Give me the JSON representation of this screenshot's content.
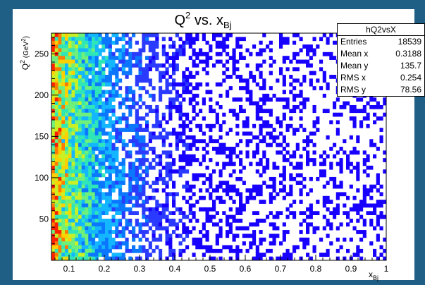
{
  "window": {
    "background": "#1f5f86"
  },
  "stats": {
    "title": "hQ2vsX",
    "rows": [
      {
        "label": "Entries",
        "value": "18539"
      },
      {
        "label": "Mean x",
        "value": "0.3188"
      },
      {
        "label": "Mean y",
        "value": "135.7"
      },
      {
        "label": "RMS x",
        "value": "0.254"
      },
      {
        "label": "RMS y",
        "value": "78.56"
      }
    ]
  },
  "chart_data": {
    "type": "heatmap",
    "title": "Q² vs. x_Bj",
    "title_parts": {
      "main": "Q",
      "sup": "2",
      "mid": " vs. x",
      "sub": "Bj"
    },
    "xlabel_parts": {
      "main": "x",
      "sub": "Bj"
    },
    "ylabel_parts": {
      "main": "Q",
      "sup": "2",
      "unit": " (GeV",
      "unit_sup": "2",
      "close": ")"
    },
    "xlim": [
      0.05,
      1.0
    ],
    "ylim": [
      0,
      275
    ],
    "x_ticks": [
      0.1,
      0.2,
      0.3,
      0.4,
      0.5,
      0.6,
      0.7,
      0.8,
      0.9,
      1
    ],
    "x_tick_labels": [
      "0.1",
      "0.2",
      "0.3",
      "0.4",
      "0.5",
      "0.6",
      "0.7",
      "0.8",
      "0.9",
      "1"
    ],
    "y_ticks": [
      50,
      100,
      150,
      200,
      250
    ],
    "y_tick_labels": [
      "50",
      "100",
      "150",
      "200",
      "250"
    ],
    "bins_x": 100,
    "bins_y": 60,
    "entries": 18539,
    "palette": [
      "#1800ff",
      "#2a3bff",
      "#0b77ff",
      "#14b6ff",
      "#2ee6b8",
      "#6ef07a",
      "#c8f024",
      "#ffd000",
      "#ff7b00",
      "#ff1e00"
    ]
  }
}
